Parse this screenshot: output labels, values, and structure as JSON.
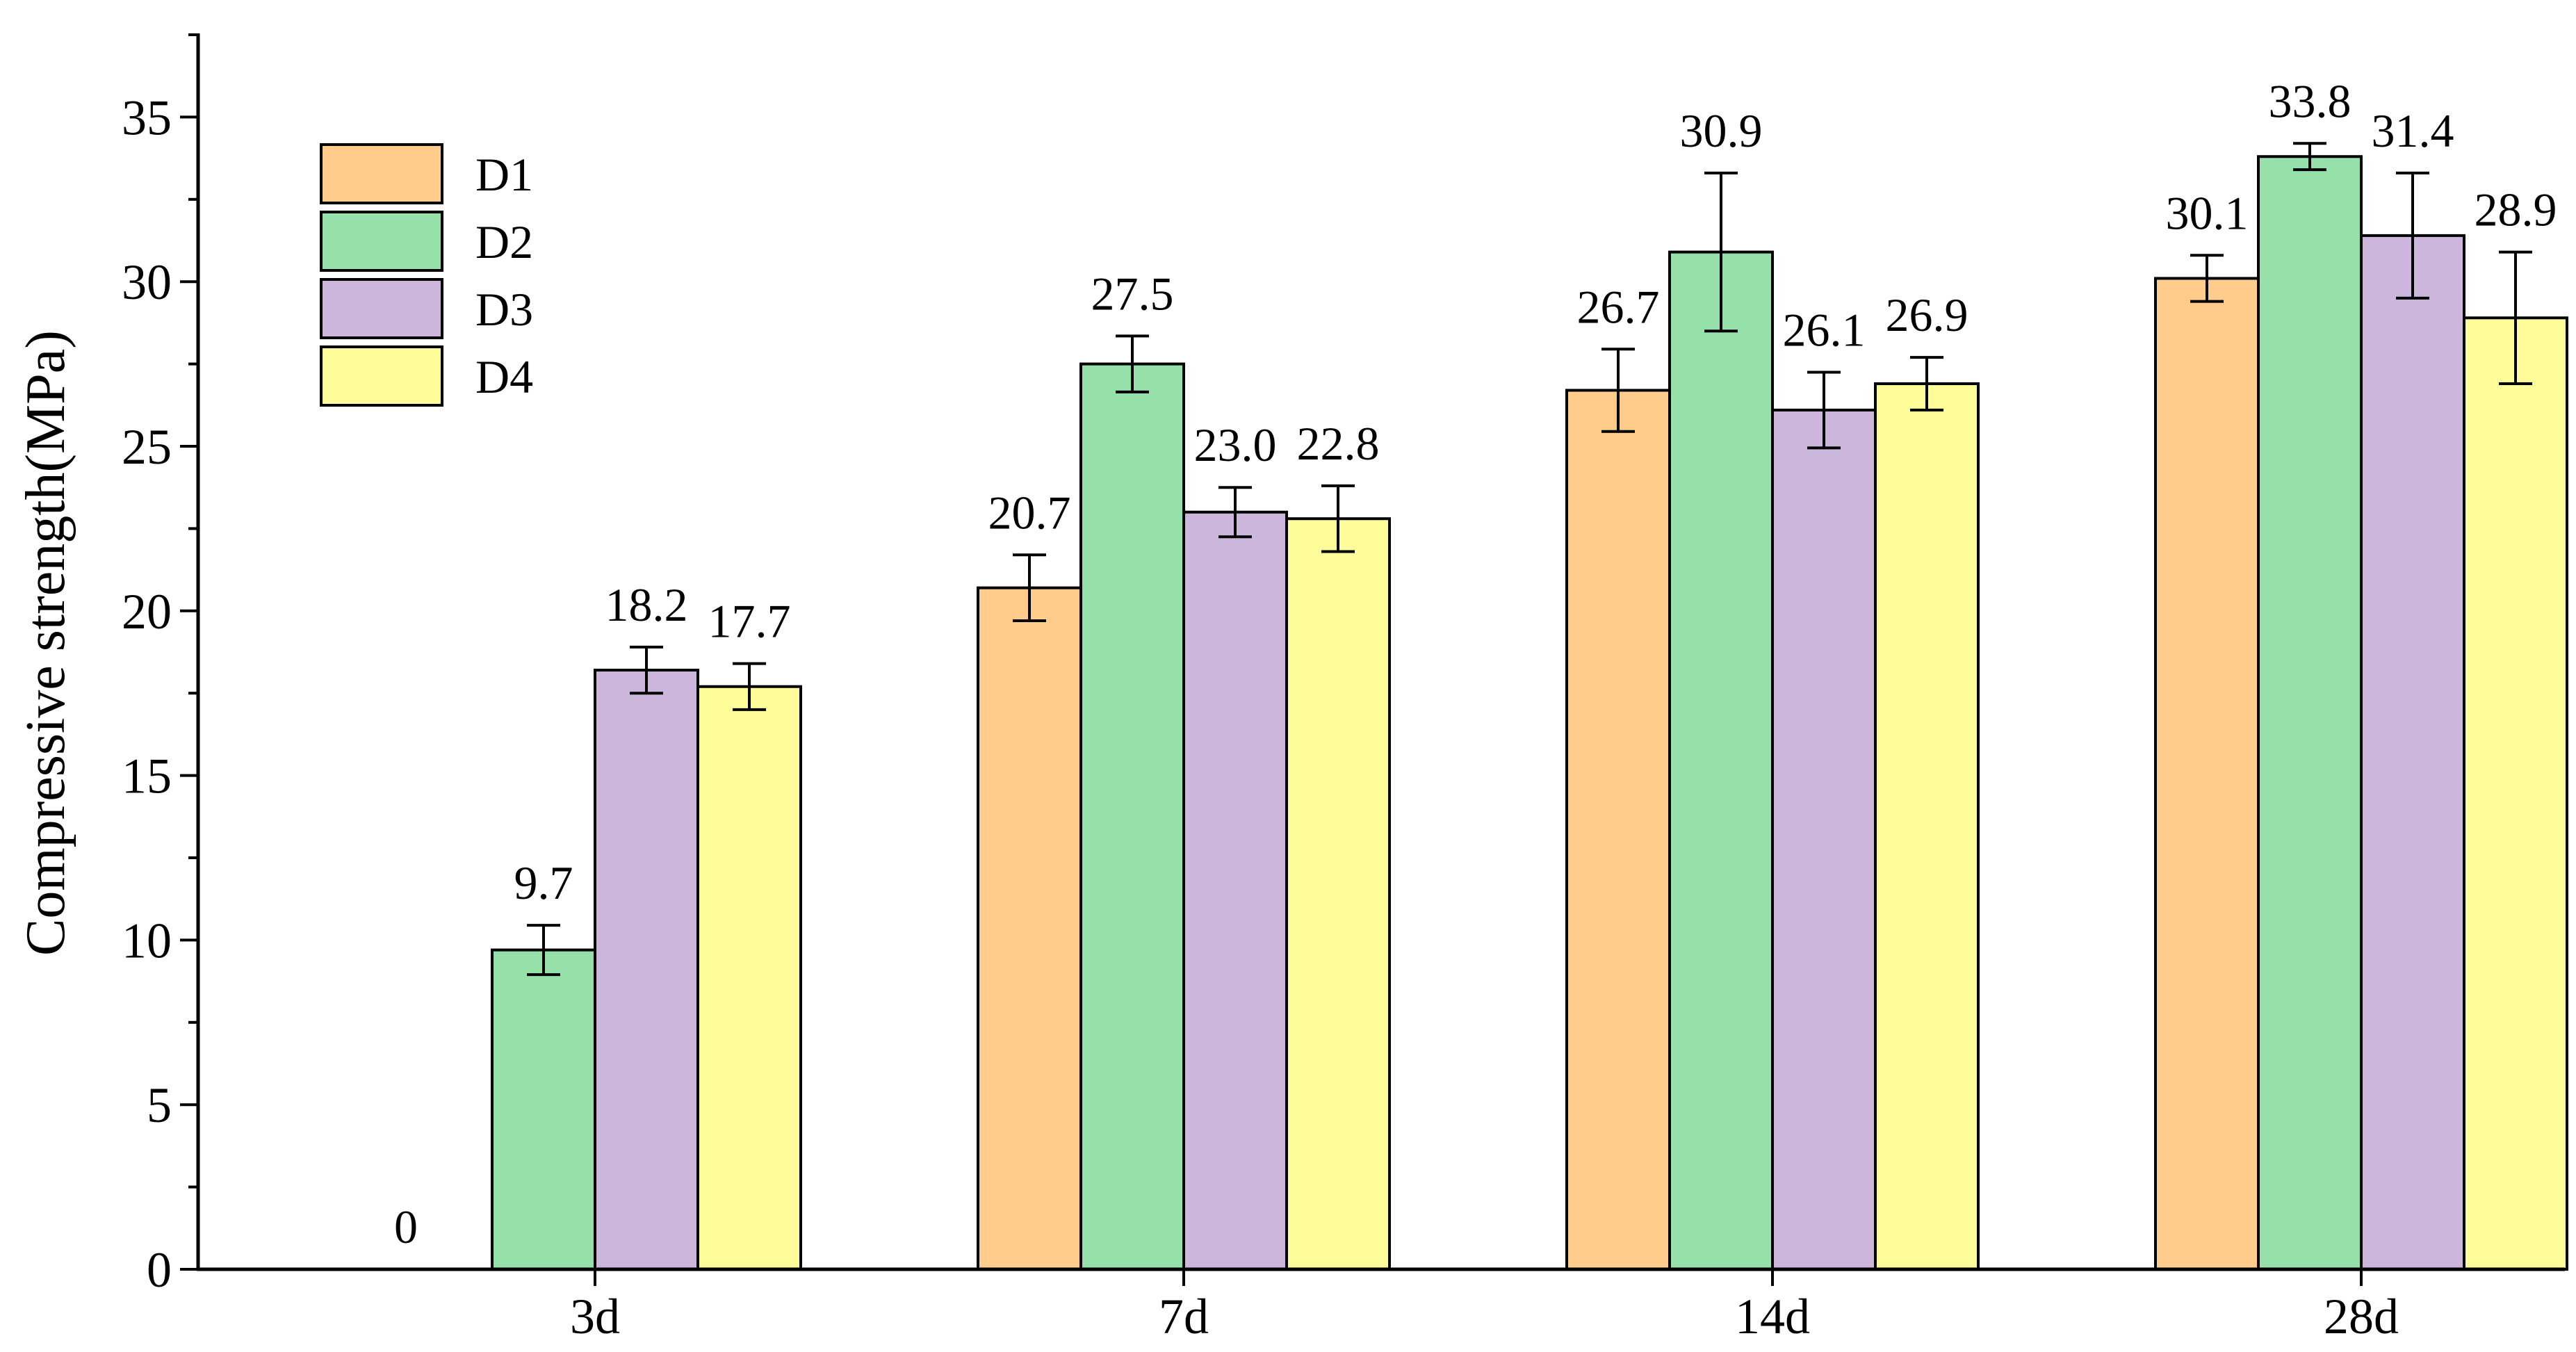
{
  "chart_data": {
    "type": "bar",
    "title": "",
    "xlabel": "",
    "ylabel": "Compressive strength(MPa)",
    "categories": [
      "3d",
      "7d",
      "14d",
      "28d"
    ],
    "ylim": [
      0,
      37.5
    ],
    "yticks": [
      0,
      5,
      10,
      15,
      20,
      25,
      30,
      35
    ],
    "ytick_labels": [
      "0",
      "5",
      "10",
      "15",
      "20",
      "25",
      "30",
      "35"
    ],
    "grid": false,
    "legend_position": "top-left",
    "series": [
      {
        "name": "D1",
        "color": "#FFCC8C",
        "values": [
          0,
          20.7,
          26.7,
          30.1
        ],
        "errors": [
          0,
          1.0,
          1.25,
          0.7
        ],
        "labels": [
          "0",
          "20.7",
          "26.7",
          "30.1"
        ]
      },
      {
        "name": "D2",
        "color": "#96E0AA",
        "values": [
          9.7,
          27.5,
          30.9,
          33.8
        ],
        "errors": [
          0.75,
          0.85,
          2.4,
          0.4
        ],
        "labels": [
          "9.7",
          "27.5",
          "30.9",
          "33.8"
        ]
      },
      {
        "name": "D3",
        "color": "#CDB6DC",
        "values": [
          18.2,
          23.0,
          26.1,
          31.4
        ],
        "errors": [
          0.7,
          0.75,
          1.15,
          1.9
        ],
        "labels": [
          "18.2",
          "23.0",
          "26.1",
          "31.4"
        ]
      },
      {
        "name": "D4",
        "color": "#FFFD99",
        "values": [
          17.7,
          22.8,
          26.9,
          28.9
        ],
        "errors": [
          0.7,
          1.0,
          0.8,
          2.0
        ],
        "labels": [
          "17.7",
          "22.8",
          "26.9",
          "28.9"
        ]
      }
    ]
  }
}
